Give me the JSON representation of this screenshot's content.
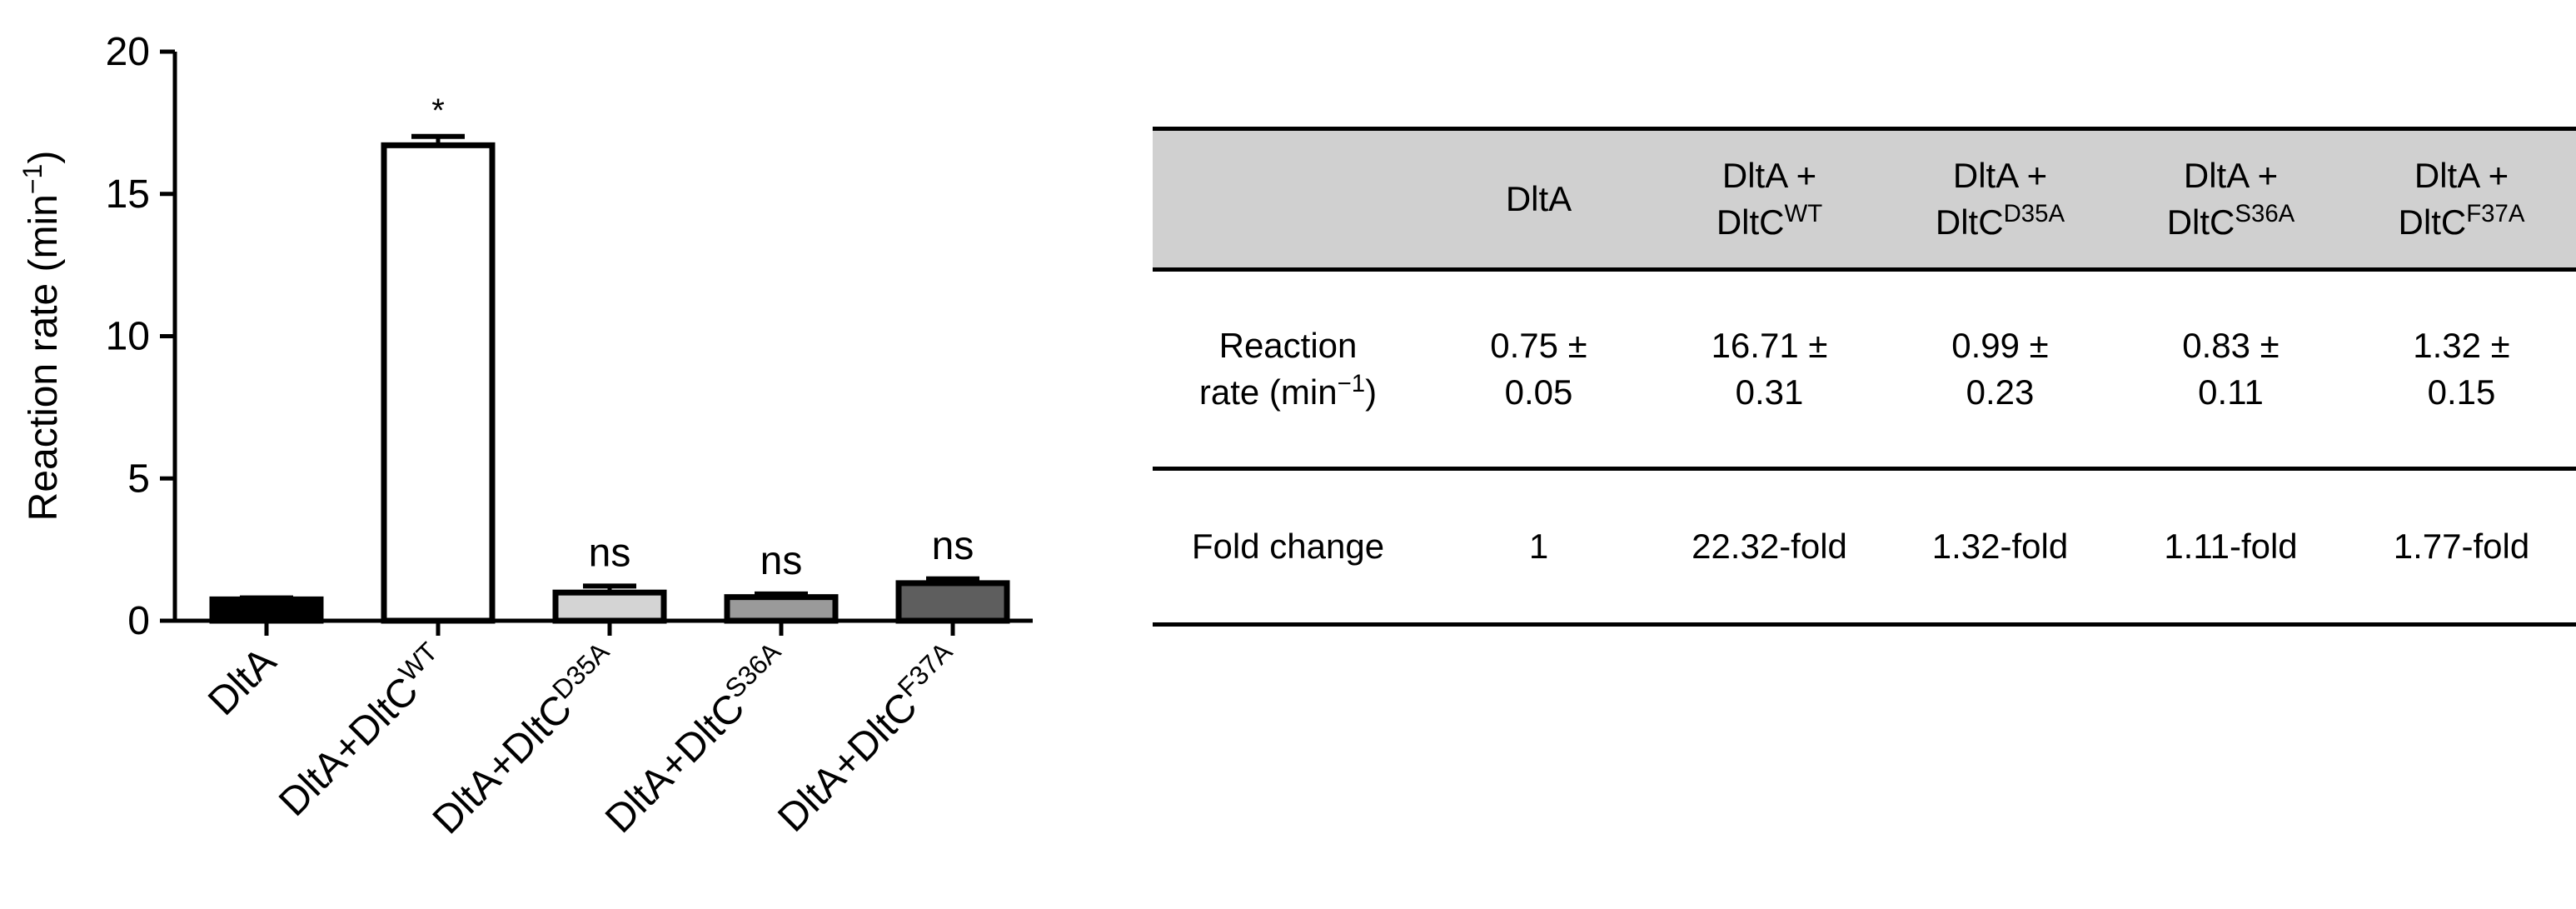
{
  "chart_data": {
    "type": "bar",
    "ylabel": "Reaction rate (min",
    "ylabel_sup": "−1",
    "ylabel_close": ")",
    "ylim": [
      0,
      20
    ],
    "yticks": [
      0,
      5,
      10,
      15,
      20
    ],
    "grid": false,
    "categories": [
      {
        "base": "DltA",
        "sup": ""
      },
      {
        "base": "DltA+DltC",
        "sup": "WT"
      },
      {
        "base": "DltA+DltC",
        "sup": "D35A"
      },
      {
        "base": "DltA+DltC",
        "sup": "S36A"
      },
      {
        "base": "DltA+DltC",
        "sup": "F37A"
      }
    ],
    "values": [
      0.75,
      16.71,
      0.99,
      0.83,
      1.32
    ],
    "errors": [
      0.05,
      0.31,
      0.23,
      0.11,
      0.15
    ],
    "annotations": [
      "",
      "*",
      "ns",
      "ns",
      "ns"
    ],
    "bar_colors": [
      "#000000",
      "#ffffff",
      "#d4d4d4",
      "#9a9a9a",
      "#5e5e5e"
    ]
  },
  "table": {
    "headers": [
      {
        "line1": "",
        "base": "",
        "sup": ""
      },
      {
        "line1": "DltA",
        "base": "",
        "sup": ""
      },
      {
        "line1": "DltA +",
        "base": "DltC",
        "sup": "WT"
      },
      {
        "line1": "DltA +",
        "base": "DltC",
        "sup": "D35A"
      },
      {
        "line1": "DltA +",
        "base": "DltC",
        "sup": "S36A"
      },
      {
        "line1": "DltA +",
        "base": "DltC",
        "sup": "F37A"
      }
    ],
    "row_rate": {
      "label_line1": "Reaction",
      "label_line2": "rate (min",
      "label_sup": "−1",
      "label_close": ")",
      "cells": [
        {
          "line1": "0.75 ±",
          "line2": "0.05"
        },
        {
          "line1": "16.71 ±",
          "line2": "0.31"
        },
        {
          "line1": "0.99 ±",
          "line2": "0.23"
        },
        {
          "line1": "0.83 ±",
          "line2": "0.11"
        },
        {
          "line1": "1.32 ±",
          "line2": "0.15"
        }
      ]
    },
    "row_fold": {
      "label": "Fold change",
      "cells": [
        "1",
        "22.32-fold",
        "1.32-fold",
        "1.11-fold",
        "1.77-fold"
      ]
    }
  }
}
